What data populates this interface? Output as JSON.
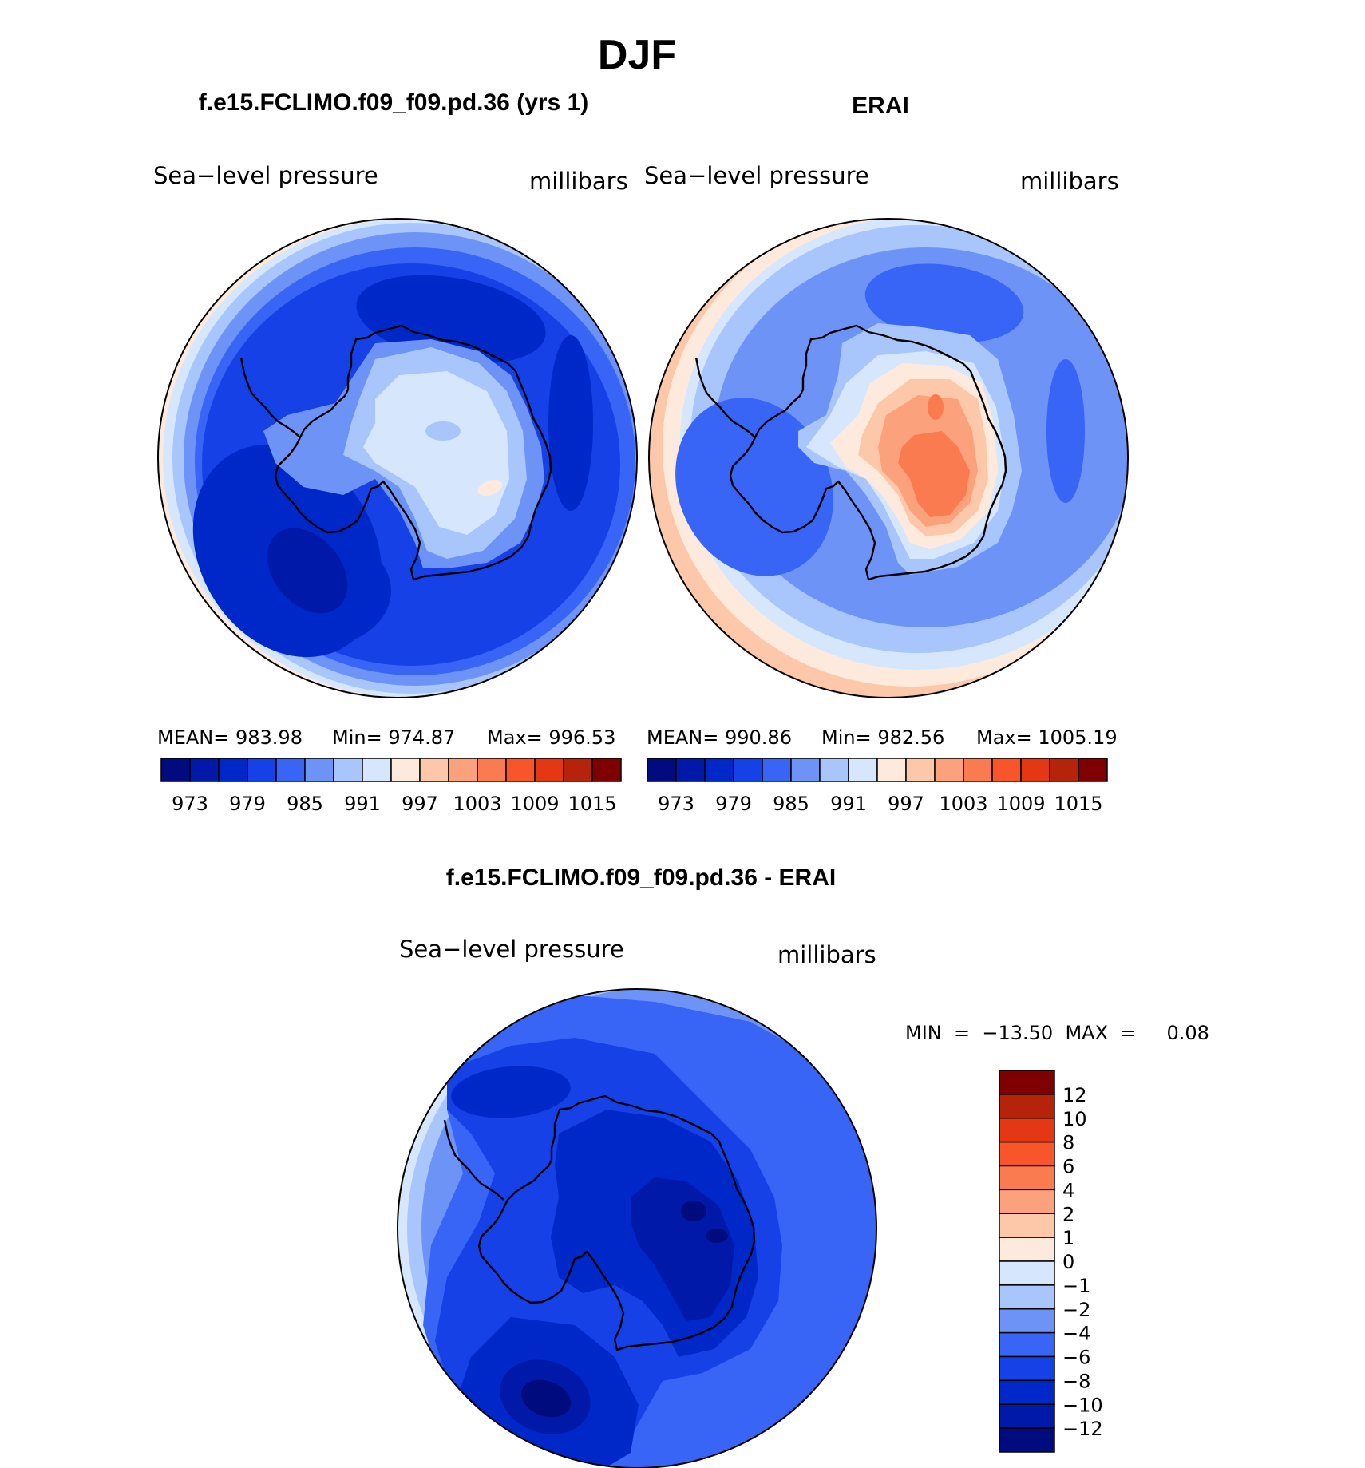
{
  "figure": {
    "title": "DJF"
  },
  "colors": {
    "base": [
      "#000c7d",
      "#0019a9",
      "#0028c8",
      "#1541e6",
      "#3865f5",
      "#6e93f7",
      "#a8c6fb",
      "#d6e7fd",
      "#feeadc",
      "#fdc8aa",
      "#fba27c",
      "#fa7b4f",
      "#f8552b",
      "#e33813",
      "#b4230a",
      "#7e0000"
    ],
    "diff": [
      "#000c7d",
      "#0019a9",
      "#0028c8",
      "#1541e6",
      "#3865f5",
      "#6e93f7",
      "#a8c6fb",
      "#d6e7fd",
      "#feeadc",
      "#fdc8aa",
      "#fba27c",
      "#fa7b4f",
      "#f8552b",
      "#e33813",
      "#b4230a",
      "#7e0000"
    ]
  },
  "panels": {
    "model": {
      "title": "f.e15.FCLIMO.f09_f09.pd.36 (yrs 1)",
      "variable": "Sea−level pressure",
      "units": "millibars",
      "stats": {
        "mean": "MEAN=  983.98",
        "min": "Min=  974.87",
        "max": "Max=  996.53"
      }
    },
    "obs": {
      "title": "ERAI",
      "variable": "Sea−level pressure",
      "units": "millibars",
      "stats": {
        "mean": "MEAN=  990.86",
        "min": "Min=  982.56",
        "max": "Max=  1005.19"
      }
    },
    "diff": {
      "title": "f.e15.FCLIMO.f09_f09.pd.36 - ERAI",
      "variable": "Sea−level pressure",
      "units": "millibars",
      "minmax": "MIN  =  −13.50  MAX  =     0.08"
    }
  },
  "chart_data": [
    {
      "type": "heatmap",
      "projection": "south-polar stereographic",
      "title": "f.e15.FCLIMO.f09_f09.pd.36 (yrs 1)",
      "variable": "Sea-level pressure",
      "units": "millibars",
      "mean": 983.98,
      "min": 974.87,
      "max": 996.53,
      "levels": [
        973,
        976,
        979,
        982,
        985,
        988,
        991,
        994,
        997,
        1000,
        1003,
        1006,
        1009,
        1012,
        1015
      ],
      "tick_labels": [
        "973",
        "979",
        "985",
        "991",
        "997",
        "1003",
        "1009",
        "1015"
      ],
      "colorbar": "horizontal-below"
    },
    {
      "type": "heatmap",
      "projection": "south-polar stereographic",
      "title": "ERAI",
      "variable": "Sea-level pressure",
      "units": "millibars",
      "mean": 990.86,
      "min": 982.56,
      "max": 1005.19,
      "levels": [
        973,
        976,
        979,
        982,
        985,
        988,
        991,
        994,
        997,
        1000,
        1003,
        1006,
        1009,
        1012,
        1015
      ],
      "tick_labels": [
        "973",
        "979",
        "985",
        "991",
        "997",
        "1003",
        "1009",
        "1015"
      ],
      "colorbar": "horizontal-below"
    },
    {
      "type": "heatmap",
      "projection": "south-polar stereographic",
      "title": "f.e15.FCLIMO.f09_f09.pd.36 - ERAI",
      "variable": "Sea-level pressure",
      "units": "millibars",
      "min": -13.5,
      "max": 0.08,
      "levels": [
        -12,
        -10,
        -8,
        -6,
        -4,
        -2,
        -1,
        0,
        1,
        2,
        4,
        6,
        8,
        10,
        12
      ],
      "tick_labels": [
        "12",
        "10",
        "8",
        "6",
        "4",
        "2",
        "1",
        "0",
        "−1",
        "−2",
        "−4",
        "−6",
        "−8",
        "−10",
        "−12"
      ],
      "colorbar": "vertical-right"
    }
  ]
}
